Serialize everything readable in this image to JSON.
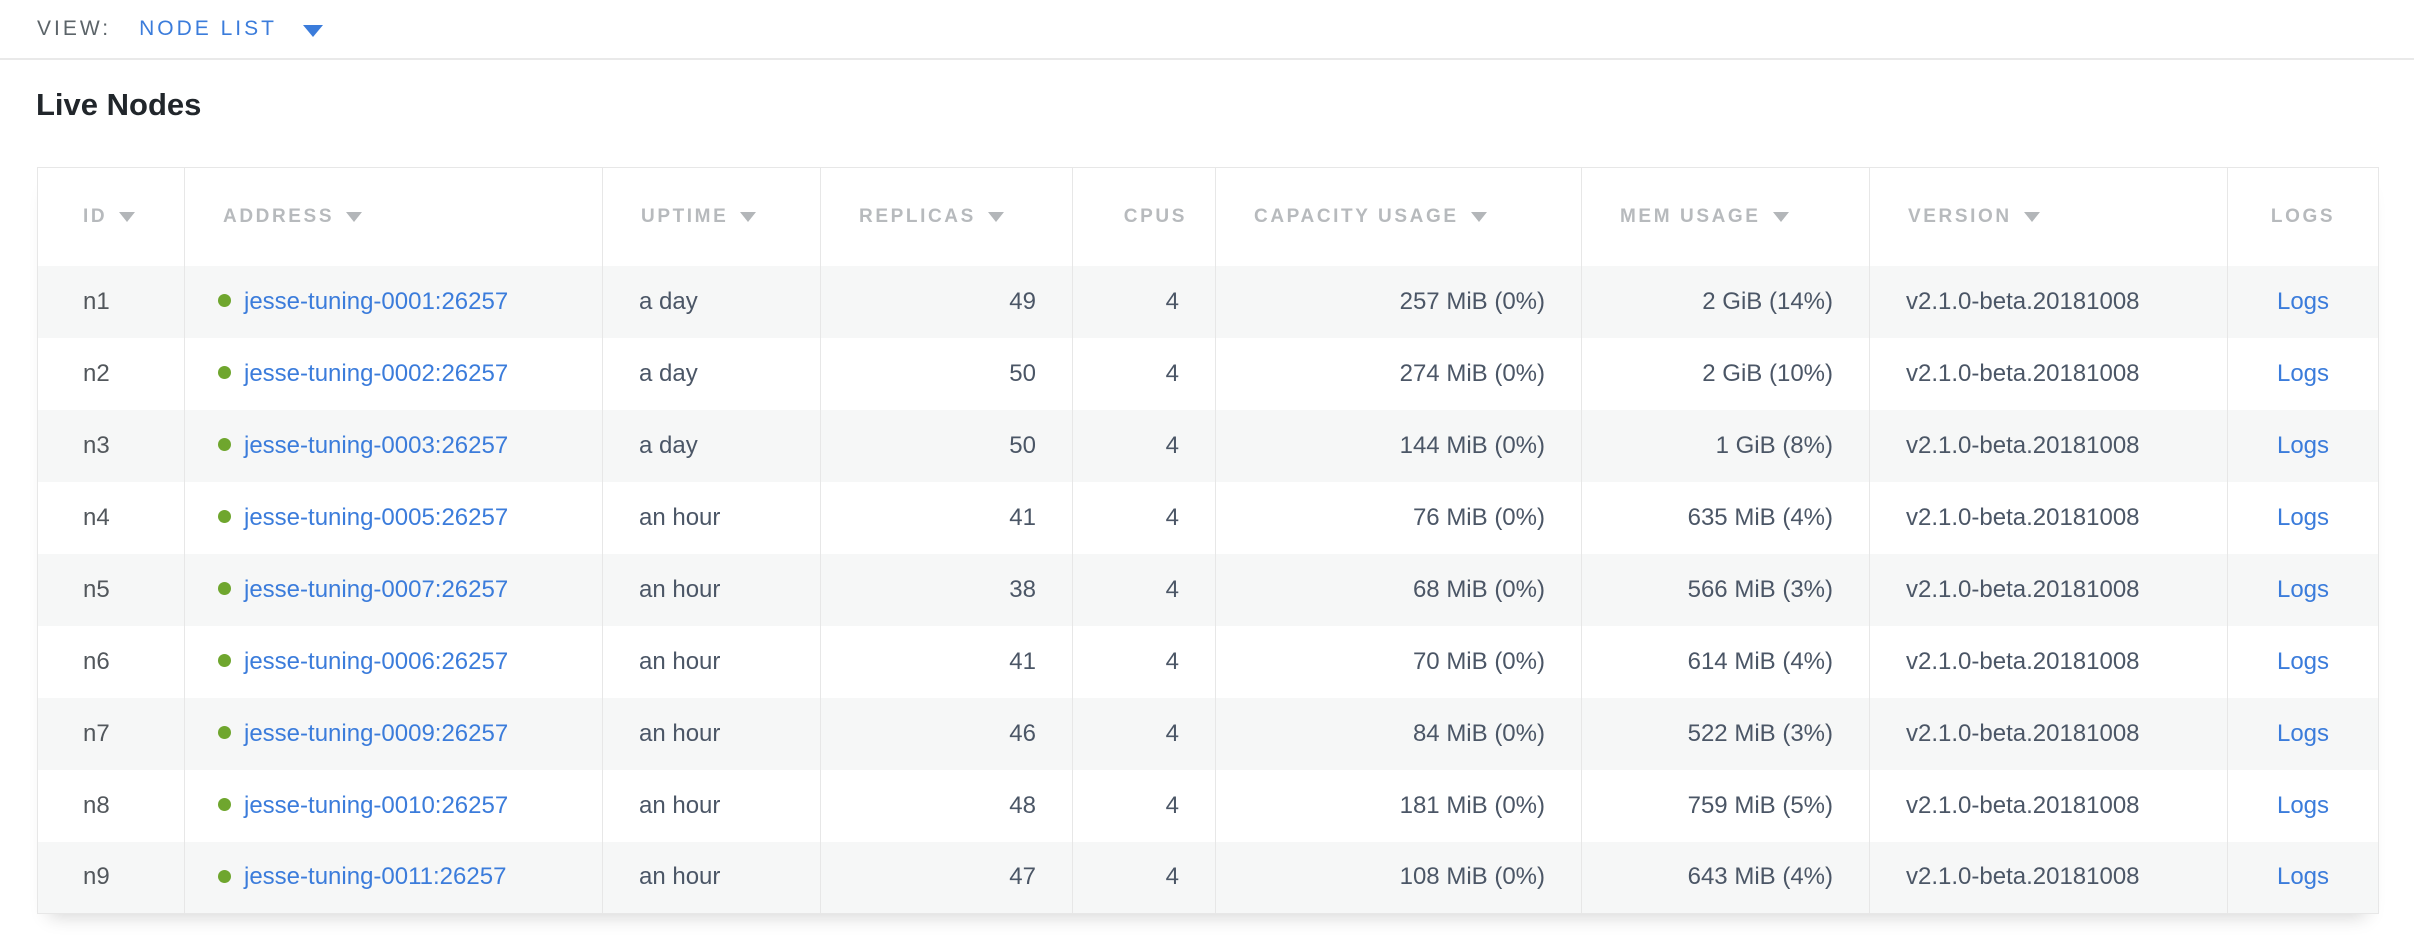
{
  "view_bar": {
    "label": "VIEW:",
    "selected": "NODE LIST"
  },
  "title": "Live Nodes",
  "colors": {
    "link_blue": "#3b7cdb",
    "live_status_green": "#6fa62e",
    "header_gray": "#b7babd",
    "cell_text": "#4b5666",
    "stripe": "#f6f7f7",
    "border": "#e7e7e7"
  },
  "table": {
    "columns": [
      {
        "key": "id",
        "label": "ID",
        "sortable": true
      },
      {
        "key": "address",
        "label": "ADDRESS",
        "sortable": true
      },
      {
        "key": "uptime",
        "label": "UPTIME",
        "sortable": true
      },
      {
        "key": "replicas",
        "label": "REPLICAS",
        "sortable": true
      },
      {
        "key": "cpus",
        "label": "CPUS",
        "sortable": false
      },
      {
        "key": "capacity",
        "label": "CAPACITY USAGE",
        "sortable": true
      },
      {
        "key": "mem",
        "label": "MEM USAGE",
        "sortable": true
      },
      {
        "key": "version",
        "label": "VERSION",
        "sortable": true
      },
      {
        "key": "logs",
        "label": "LOGS",
        "sortable": false
      }
    ],
    "rows": [
      {
        "id": "n1",
        "address": "jesse-tuning-0001:26257",
        "uptime": "a day",
        "replicas": "49",
        "cpus": "4",
        "capacity": "257 MiB (0%)",
        "mem": "2 GiB (14%)",
        "version": "v2.1.0-beta.20181008",
        "logs": "Logs"
      },
      {
        "id": "n2",
        "address": "jesse-tuning-0002:26257",
        "uptime": "a day",
        "replicas": "50",
        "cpus": "4",
        "capacity": "274 MiB (0%)",
        "mem": "2 GiB (10%)",
        "version": "v2.1.0-beta.20181008",
        "logs": "Logs"
      },
      {
        "id": "n3",
        "address": "jesse-tuning-0003:26257",
        "uptime": "a day",
        "replicas": "50",
        "cpus": "4",
        "capacity": "144 MiB (0%)",
        "mem": "1 GiB (8%)",
        "version": "v2.1.0-beta.20181008",
        "logs": "Logs"
      },
      {
        "id": "n4",
        "address": "jesse-tuning-0005:26257",
        "uptime": "an hour",
        "replicas": "41",
        "cpus": "4",
        "capacity": "76 MiB (0%)",
        "mem": "635 MiB (4%)",
        "version": "v2.1.0-beta.20181008",
        "logs": "Logs"
      },
      {
        "id": "n5",
        "address": "jesse-tuning-0007:26257",
        "uptime": "an hour",
        "replicas": "38",
        "cpus": "4",
        "capacity": "68 MiB (0%)",
        "mem": "566 MiB (3%)",
        "version": "v2.1.0-beta.20181008",
        "logs": "Logs"
      },
      {
        "id": "n6",
        "address": "jesse-tuning-0006:26257",
        "uptime": "an hour",
        "replicas": "41",
        "cpus": "4",
        "capacity": "70 MiB (0%)",
        "mem": "614 MiB (4%)",
        "version": "v2.1.0-beta.20181008",
        "logs": "Logs"
      },
      {
        "id": "n7",
        "address": "jesse-tuning-0009:26257",
        "uptime": "an hour",
        "replicas": "46",
        "cpus": "4",
        "capacity": "84 MiB (0%)",
        "mem": "522 MiB (3%)",
        "version": "v2.1.0-beta.20181008",
        "logs": "Logs"
      },
      {
        "id": "n8",
        "address": "jesse-tuning-0010:26257",
        "uptime": "an hour",
        "replicas": "48",
        "cpus": "4",
        "capacity": "181 MiB (0%)",
        "mem": "759 MiB (5%)",
        "version": "v2.1.0-beta.20181008",
        "logs": "Logs"
      },
      {
        "id": "n9",
        "address": "jesse-tuning-0011:26257",
        "uptime": "an hour",
        "replicas": "47",
        "cpus": "4",
        "capacity": "108 MiB (0%)",
        "mem": "643 MiB (4%)",
        "version": "v2.1.0-beta.20181008",
        "logs": "Logs"
      }
    ]
  }
}
